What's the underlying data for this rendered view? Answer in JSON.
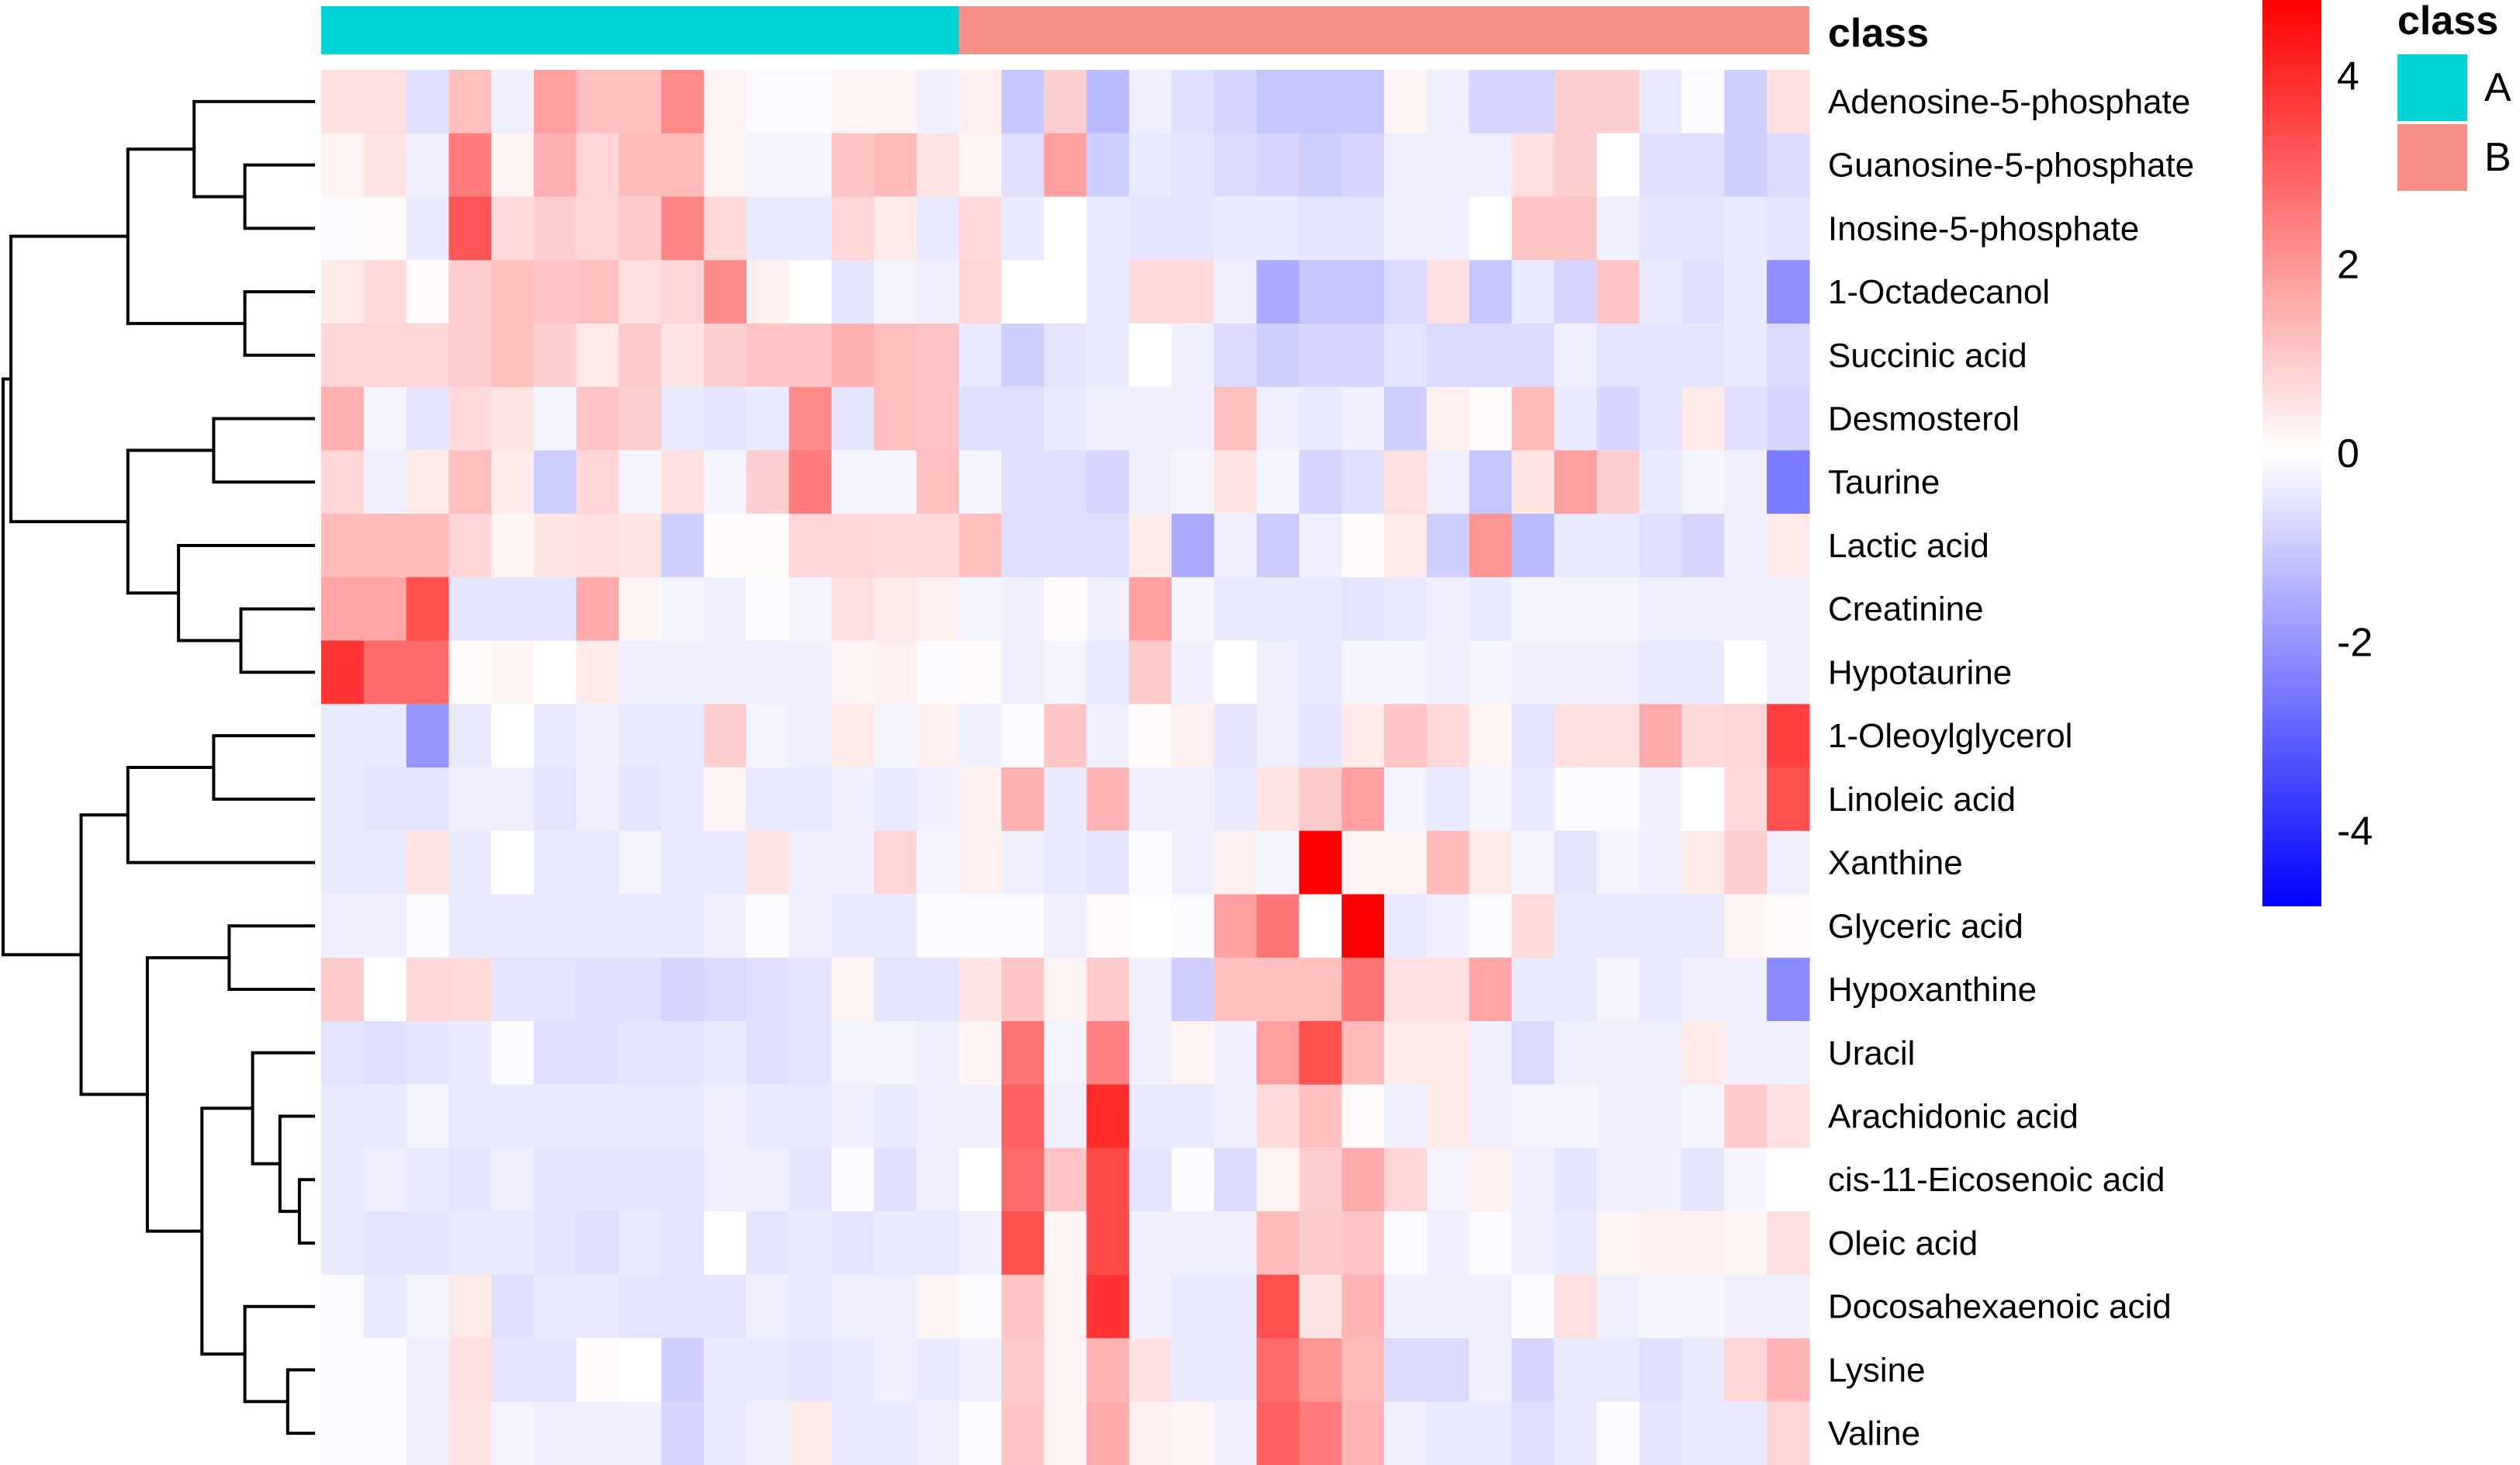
{
  "chart_data": {
    "type": "heatmap",
    "title": "",
    "xlabel": "",
    "ylabel": "",
    "annotation_title": "class",
    "legend_title": "class",
    "classes": [
      {
        "name": "A",
        "color": "#00d4d4",
        "count": 15
      },
      {
        "name": "B",
        "color": "#f8908a",
        "count": 20
      }
    ],
    "colorscale": {
      "low": "#0000ff",
      "mid": "#ffffff",
      "high": "#ff0000",
      "min": -4.8,
      "max": 4.8,
      "ticks": [
        4,
        2,
        0,
        -2,
        -4
      ],
      "tick_labels": [
        "4",
        "2",
        "0",
        "-2",
        "-4"
      ]
    },
    "rows": [
      "Adenosine-5-phosphate",
      "Guanosine-5-phosphate",
      "Inosine-5-phosphate",
      "1-Octadecanol",
      "Succinic acid",
      "Desmosterol",
      "Taurine",
      "Lactic acid",
      "Creatinine",
      "Hypotaurine",
      "1-Oleoylglycerol",
      "Linoleic acid",
      "Xanthine",
      "Glyceric acid",
      "Hypoxanthine",
      "Uracil",
      "Arachidonic acid",
      "cis-11-Eicosenoic acid",
      "Oleic acid",
      "Docosahexaenoic acid",
      "Lysine",
      "Valine"
    ],
    "values": [
      [
        0.6,
        0.6,
        -0.6,
        1.2,
        -0.3,
        1.8,
        1.2,
        1.2,
        2.2,
        0.2,
        -0.1,
        -0.1,
        0.2,
        0.2,
        -0.3,
        0.3,
        -1.1,
        0.9,
        -1.3,
        -0.3,
        -0.6,
        -0.8,
        -1.1,
        -1.1,
        -1.1,
        0.2,
        -0.3,
        -0.8,
        -0.8,
        0.9,
        0.9,
        -0.4,
        -0.1,
        -0.9,
        0.6
      ],
      [
        0.2,
        0.5,
        -0.3,
        2.5,
        0.2,
        1.5,
        0.8,
        1.3,
        1.3,
        0.2,
        -0.2,
        -0.2,
        1.1,
        1.3,
        0.5,
        0.2,
        -0.6,
        1.8,
        -0.9,
        -0.4,
        -0.5,
        -0.7,
        -0.8,
        -0.9,
        -0.8,
        -0.3,
        -0.3,
        -0.3,
        0.6,
        0.9,
        0.0,
        -0.6,
        -0.6,
        -0.9,
        -0.7
      ],
      [
        -0.1,
        0.1,
        -0.4,
        3.2,
        0.7,
        0.9,
        0.8,
        1.0,
        2.3,
        0.7,
        -0.4,
        -0.4,
        0.8,
        0.4,
        -0.4,
        0.7,
        -0.4,
        0.0,
        -0.4,
        -0.5,
        -0.5,
        -0.4,
        -0.4,
        -0.5,
        -0.5,
        -0.3,
        -0.3,
        0.0,
        1.1,
        1.1,
        -0.3,
        -0.5,
        -0.5,
        -0.4,
        -0.5
      ],
      [
        0.4,
        0.7,
        0.1,
        0.9,
        1.2,
        1.1,
        1.2,
        0.6,
        0.8,
        2.2,
        0.3,
        0.0,
        -0.5,
        -0.2,
        -0.3,
        0.8,
        0.0,
        0.0,
        -0.4,
        0.7,
        0.7,
        -0.3,
        -1.6,
        -1.1,
        -1.1,
        -0.7,
        0.6,
        -1.1,
        -0.4,
        -0.8,
        1.1,
        -0.4,
        -0.6,
        -0.4,
        -2.1
      ],
      [
        0.8,
        0.8,
        0.8,
        0.9,
        1.2,
        0.9,
        0.4,
        1.0,
        0.5,
        0.9,
        1.1,
        1.1,
        1.5,
        1.2,
        1.1,
        -0.4,
        -0.9,
        -0.5,
        -0.4,
        0.0,
        -0.3,
        -0.7,
        -0.9,
        -0.8,
        -0.8,
        -0.5,
        -0.7,
        -0.7,
        -0.7,
        -0.3,
        -0.5,
        -0.5,
        -0.5,
        -0.4,
        -0.7
      ],
      [
        1.5,
        -0.2,
        -0.5,
        0.7,
        0.5,
        -0.2,
        1.1,
        0.9,
        -0.4,
        -0.5,
        -0.4,
        2.2,
        -0.5,
        1.2,
        1.1,
        -0.6,
        -0.6,
        -0.4,
        -0.3,
        -0.3,
        -0.3,
        1.2,
        -0.3,
        -0.4,
        -0.3,
        -0.9,
        0.3,
        0.1,
        1.3,
        -0.4,
        -0.8,
        -0.5,
        0.4,
        -0.6,
        -0.8
      ],
      [
        0.8,
        -0.3,
        0.4,
        1.2,
        0.4,
        -0.9,
        0.8,
        -0.2,
        0.6,
        -0.2,
        0.9,
        2.5,
        -0.2,
        -0.2,
        1.2,
        -0.2,
        -0.6,
        -0.6,
        -0.8,
        -0.3,
        -0.2,
        0.5,
        -0.2,
        -0.8,
        -0.6,
        0.6,
        -0.3,
        -1.1,
        0.5,
        1.8,
        0.9,
        -0.4,
        -0.2,
        -0.3,
        -2.5
      ],
      [
        1.3,
        1.3,
        1.3,
        0.8,
        0.2,
        0.5,
        0.6,
        0.5,
        -0.9,
        0.1,
        0.1,
        0.8,
        0.8,
        0.7,
        0.7,
        1.2,
        -0.6,
        -0.6,
        -0.6,
        0.4,
        -1.6,
        -0.3,
        -1.0,
        -0.3,
        0.1,
        0.4,
        -0.9,
        2.0,
        -1.3,
        -0.4,
        -0.4,
        -0.6,
        -0.8,
        -0.3,
        0.4
      ],
      [
        1.7,
        1.7,
        3.3,
        -0.5,
        -0.5,
        -0.5,
        1.6,
        0.2,
        -0.2,
        -0.3,
        -0.1,
        -0.2,
        0.6,
        0.4,
        0.3,
        -0.2,
        -0.3,
        0.1,
        -0.3,
        1.8,
        -0.2,
        -0.4,
        -0.4,
        -0.4,
        -0.5,
        -0.4,
        -0.3,
        -0.4,
        -0.2,
        -0.2,
        -0.2,
        -0.3,
        -0.3,
        -0.3,
        -0.3
      ],
      [
        3.8,
        2.8,
        2.8,
        0.1,
        0.2,
        0.0,
        0.4,
        -0.3,
        -0.3,
        -0.3,
        -0.3,
        -0.3,
        0.2,
        0.3,
        -0.1,
        0.1,
        -0.3,
        -0.2,
        -0.4,
        1.0,
        -0.3,
        0.0,
        -0.3,
        -0.4,
        -0.2,
        -0.2,
        -0.3,
        -0.2,
        -0.3,
        -0.3,
        -0.3,
        -0.4,
        -0.4,
        0.0,
        -0.3
      ],
      [
        -0.4,
        -0.4,
        -2.0,
        -0.4,
        0.0,
        -0.4,
        -0.3,
        -0.4,
        -0.4,
        0.9,
        -0.2,
        -0.3,
        0.4,
        -0.2,
        0.3,
        -0.3,
        -0.1,
        1.1,
        -0.3,
        0.1,
        0.3,
        -0.5,
        -0.3,
        -0.5,
        0.4,
        1.1,
        0.7,
        0.2,
        -0.5,
        0.6,
        0.6,
        1.6,
        0.7,
        0.8,
        3.6
      ],
      [
        -0.4,
        -0.5,
        -0.5,
        -0.3,
        -0.3,
        -0.5,
        -0.3,
        -0.5,
        -0.4,
        0.2,
        -0.4,
        -0.4,
        -0.3,
        -0.4,
        -0.3,
        0.3,
        1.5,
        -0.4,
        1.4,
        -0.3,
        -0.3,
        -0.4,
        0.5,
        1.0,
        1.8,
        -0.2,
        -0.4,
        -0.2,
        -0.4,
        -0.1,
        -0.1,
        -0.3,
        0.0,
        0.7,
        3.3
      ],
      [
        -0.4,
        -0.4,
        0.5,
        -0.4,
        0.0,
        -0.4,
        -0.4,
        -0.2,
        -0.4,
        -0.4,
        0.5,
        -0.3,
        -0.3,
        0.8,
        -0.2,
        0.3,
        -0.3,
        -0.4,
        -0.5,
        -0.1,
        -0.3,
        0.3,
        -0.2,
        4.8,
        0.2,
        0.2,
        1.3,
        0.4,
        -0.2,
        -0.5,
        -0.2,
        -0.3,
        0.4,
        0.9,
        -0.3
      ],
      [
        -0.3,
        -0.3,
        -0.1,
        -0.4,
        -0.4,
        -0.4,
        -0.4,
        -0.4,
        -0.4,
        -0.3,
        -0.1,
        -0.3,
        -0.4,
        -0.4,
        -0.1,
        -0.1,
        -0.1,
        -0.3,
        0.1,
        0.0,
        -0.1,
        1.8,
        2.6,
        0.0,
        4.8,
        -0.4,
        -0.3,
        -0.1,
        0.7,
        -0.4,
        -0.4,
        -0.4,
        -0.4,
        0.2,
        0.1
      ],
      [
        1.0,
        0.0,
        0.8,
        0.7,
        -0.5,
        -0.5,
        -0.6,
        -0.6,
        -0.8,
        -0.7,
        -0.6,
        -0.5,
        0.2,
        -0.5,
        -0.5,
        0.5,
        1.1,
        0.2,
        1.0,
        -0.3,
        -0.9,
        1.2,
        1.2,
        1.2,
        2.6,
        0.6,
        0.6,
        1.7,
        -0.4,
        -0.4,
        -0.2,
        -0.4,
        -0.3,
        -0.3,
        -2.2
      ],
      [
        -0.5,
        -0.6,
        -0.5,
        -0.4,
        -0.1,
        -0.6,
        -0.6,
        -0.5,
        -0.5,
        -0.4,
        -0.6,
        -0.5,
        -0.2,
        -0.2,
        -0.3,
        0.2,
        2.6,
        -0.2,
        2.4,
        -0.3,
        0.2,
        -0.3,
        1.8,
        3.3,
        1.3,
        0.4,
        0.4,
        -0.3,
        -0.7,
        -0.3,
        -0.3,
        -0.3,
        0.4,
        -0.3,
        -0.3
      ],
      [
        -0.4,
        -0.4,
        -0.2,
        -0.4,
        -0.4,
        -0.4,
        -0.4,
        -0.4,
        -0.4,
        -0.3,
        -0.4,
        -0.4,
        -0.3,
        -0.4,
        -0.3,
        -0.3,
        3.0,
        -0.3,
        4.0,
        -0.4,
        -0.4,
        -0.3,
        0.7,
        1.2,
        0.1,
        -0.3,
        0.4,
        -0.3,
        -0.2,
        -0.2,
        -0.3,
        -0.3,
        -0.2,
        1.0,
        0.6
      ],
      [
        -0.4,
        -0.3,
        -0.4,
        -0.5,
        -0.3,
        -0.5,
        -0.5,
        -0.5,
        -0.5,
        -0.3,
        -0.3,
        -0.5,
        -0.1,
        -0.6,
        -0.3,
        0.0,
        2.8,
        1.1,
        3.4,
        -0.5,
        -0.1,
        -0.7,
        0.2,
        0.9,
        1.6,
        0.8,
        -0.2,
        0.3,
        -0.3,
        -0.5,
        -0.3,
        -0.3,
        -0.5,
        -0.2,
        0.0
      ],
      [
        -0.4,
        -0.5,
        -0.5,
        -0.4,
        -0.4,
        -0.5,
        -0.6,
        -0.4,
        -0.5,
        0.0,
        -0.5,
        -0.4,
        -0.5,
        -0.4,
        -0.4,
        -0.3,
        3.3,
        0.2,
        3.4,
        -0.3,
        -0.3,
        -0.3,
        1.3,
        1.0,
        1.1,
        -0.1,
        -0.3,
        -0.1,
        -0.3,
        -0.4,
        0.2,
        0.3,
        0.3,
        0.2,
        0.6
      ],
      [
        -0.1,
        -0.4,
        -0.2,
        0.4,
        -0.6,
        -0.4,
        -0.4,
        -0.5,
        -0.5,
        -0.5,
        -0.3,
        -0.4,
        -0.3,
        -0.3,
        0.2,
        -0.1,
        1.1,
        0.2,
        3.8,
        -0.3,
        -0.4,
        -0.4,
        3.3,
        0.5,
        1.4,
        -0.3,
        -0.3,
        -0.3,
        -0.1,
        0.6,
        -0.3,
        -0.2,
        -0.2,
        -0.3,
        -0.3
      ],
      [
        -0.1,
        -0.1,
        -0.3,
        0.6,
        -0.5,
        -0.5,
        0.1,
        0.0,
        -0.9,
        -0.4,
        -0.4,
        -0.5,
        -0.4,
        -0.3,
        -0.4,
        -0.3,
        1.0,
        0.2,
        1.4,
        0.6,
        -0.4,
        -0.4,
        2.8,
        2.0,
        1.3,
        -0.7,
        -0.7,
        -0.3,
        -0.8,
        -0.4,
        -0.4,
        -0.6,
        -0.4,
        0.8,
        1.4
      ],
      [
        -0.1,
        -0.1,
        -0.3,
        0.5,
        -0.2,
        -0.3,
        -0.3,
        -0.3,
        -0.8,
        -0.4,
        -0.3,
        0.4,
        -0.4,
        -0.4,
        -0.3,
        -0.1,
        1.1,
        0.2,
        1.6,
        0.3,
        0.2,
        -0.3,
        3.0,
        2.5,
        1.4,
        -0.3,
        -0.4,
        -0.4,
        -0.6,
        -0.4,
        -0.1,
        -0.5,
        -0.4,
        -0.4,
        0.8
      ]
    ],
    "row_dendrogram": {
      "nodes": [
        {
          "id": "n1",
          "l": 1,
          "r": 2,
          "h": 0.9
        },
        {
          "id": "n2",
          "l": 0,
          "r": "n1",
          "h": 1.55
        },
        {
          "id": "n3",
          "l": 3,
          "r": 4,
          "h": 0.9
        },
        {
          "id": "n4",
          "l": "n2",
          "r": "n3",
          "h": 2.4
        },
        {
          "id": "n5",
          "l": 5,
          "r": 6,
          "h": 1.3
        },
        {
          "id": "n6",
          "l": 8,
          "r": 9,
          "h": 0.95
        },
        {
          "id": "n7",
          "l": 7,
          "r": "n6",
          "h": 1.75
        },
        {
          "id": "n8",
          "l": "n5",
          "r": "n7",
          "h": 2.4
        },
        {
          "id": "n9",
          "l": "n4",
          "r": "n8",
          "h": 3.9
        },
        {
          "id": "n10",
          "l": 10,
          "r": 11,
          "h": 1.3
        },
        {
          "id": "n11",
          "l": 12,
          "r": "n10",
          "h": 2.4
        },
        {
          "id": "n12",
          "l": 13,
          "r": 14,
          "h": 1.1
        },
        {
          "id": "n13",
          "l": 17,
          "r": 18,
          "h": 0.2
        },
        {
          "id": "n14",
          "l": 16,
          "r": "n13",
          "h": 0.45
        },
        {
          "id": "n15",
          "l": 15,
          "r": "n14",
          "h": 0.8
        },
        {
          "id": "n16",
          "l": 20,
          "r": 21,
          "h": 0.35
        },
        {
          "id": "n17",
          "l": 19,
          "r": "n16",
          "h": 0.9
        },
        {
          "id": "n18",
          "l": "n15",
          "r": "n17",
          "h": 1.45
        },
        {
          "id": "n19",
          "l": "n12",
          "r": "n18",
          "h": 2.15
        },
        {
          "id": "n20",
          "l": "n11",
          "r": "n19",
          "h": 3.0
        },
        {
          "id": "n21",
          "l": "n9",
          "r": "n20",
          "h": 4.0
        }
      ]
    }
  }
}
